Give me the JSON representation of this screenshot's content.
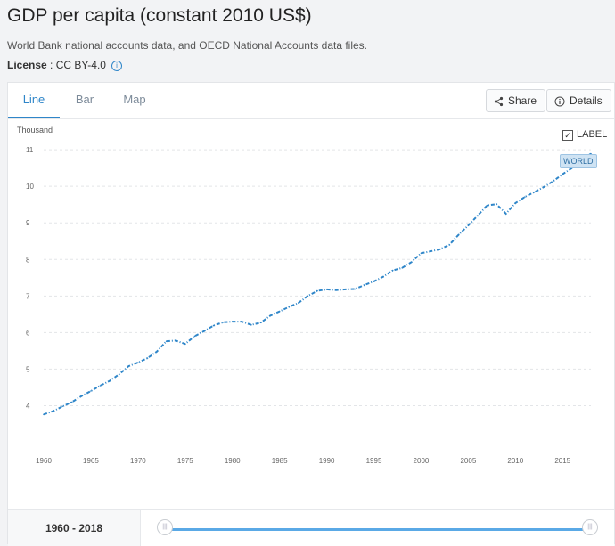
{
  "page": {
    "title": "GDP per capita (constant 2010 US$)",
    "source": "World Bank national accounts data, and OECD National Accounts data files.",
    "license_label": "License",
    "license_value": "CC BY-4.0"
  },
  "tabs": [
    {
      "label": "Line",
      "active": true
    },
    {
      "label": "Bar",
      "active": false
    },
    {
      "label": "Map",
      "active": false
    }
  ],
  "toolbar": {
    "share_label": "Share",
    "details_label": "Details"
  },
  "labels_toggle": {
    "label": "LABEL",
    "checked": true,
    "check_glyph": "✓"
  },
  "series_badge": "WORLD",
  "range": {
    "start": "1960",
    "sep": " - ",
    "end": "2018"
  },
  "icons": {
    "share": "share-icon",
    "details": "info-icon",
    "info": "info-icon",
    "slider": "grip-icon"
  },
  "colors": {
    "accent": "#2f86c9",
    "series": "#2f86c9",
    "grid": "#e3e5e8"
  },
  "chart_data": {
    "type": "line",
    "title": "GDP per capita (constant 2010 US$)",
    "ylabel": "Thousand",
    "ylim": [
      3.5,
      11.1
    ],
    "yticks": [
      4,
      5,
      6,
      7,
      8,
      9,
      10,
      11
    ],
    "xlim": [
      1960,
      2018
    ],
    "xticks": [
      1960,
      1965,
      1970,
      1975,
      1980,
      1985,
      1990,
      1995,
      2000,
      2005,
      2010,
      2015
    ],
    "grid": true,
    "series": [
      {
        "name": "WORLD",
        "x": [
          1960,
          1961,
          1962,
          1963,
          1964,
          1965,
          1966,
          1967,
          1968,
          1969,
          1970,
          1971,
          1972,
          1973,
          1974,
          1975,
          1976,
          1977,
          1978,
          1979,
          1980,
          1981,
          1982,
          1983,
          1984,
          1985,
          1986,
          1987,
          1988,
          1989,
          1990,
          1991,
          1992,
          1993,
          1994,
          1995,
          1996,
          1997,
          1998,
          1999,
          2000,
          2001,
          2002,
          2003,
          2004,
          2005,
          2006,
          2007,
          2008,
          2009,
          2010,
          2011,
          2012,
          2013,
          2014,
          2015,
          2016,
          2017,
          2018
        ],
        "values": [
          3.76,
          3.85,
          3.98,
          4.1,
          4.26,
          4.4,
          4.55,
          4.68,
          4.86,
          5.08,
          5.18,
          5.3,
          5.48,
          5.76,
          5.78,
          5.69,
          5.9,
          6.04,
          6.19,
          6.28,
          6.3,
          6.3,
          6.21,
          6.27,
          6.46,
          6.58,
          6.7,
          6.81,
          7.0,
          7.14,
          7.18,
          7.16,
          7.18,
          7.19,
          7.3,
          7.4,
          7.53,
          7.7,
          7.77,
          7.93,
          8.17,
          8.22,
          8.28,
          8.4,
          8.68,
          8.93,
          9.2,
          9.48,
          9.51,
          9.25,
          9.54,
          9.71,
          9.84,
          9.98,
          10.14,
          10.33,
          10.5,
          10.72,
          10.89
        ]
      }
    ]
  }
}
